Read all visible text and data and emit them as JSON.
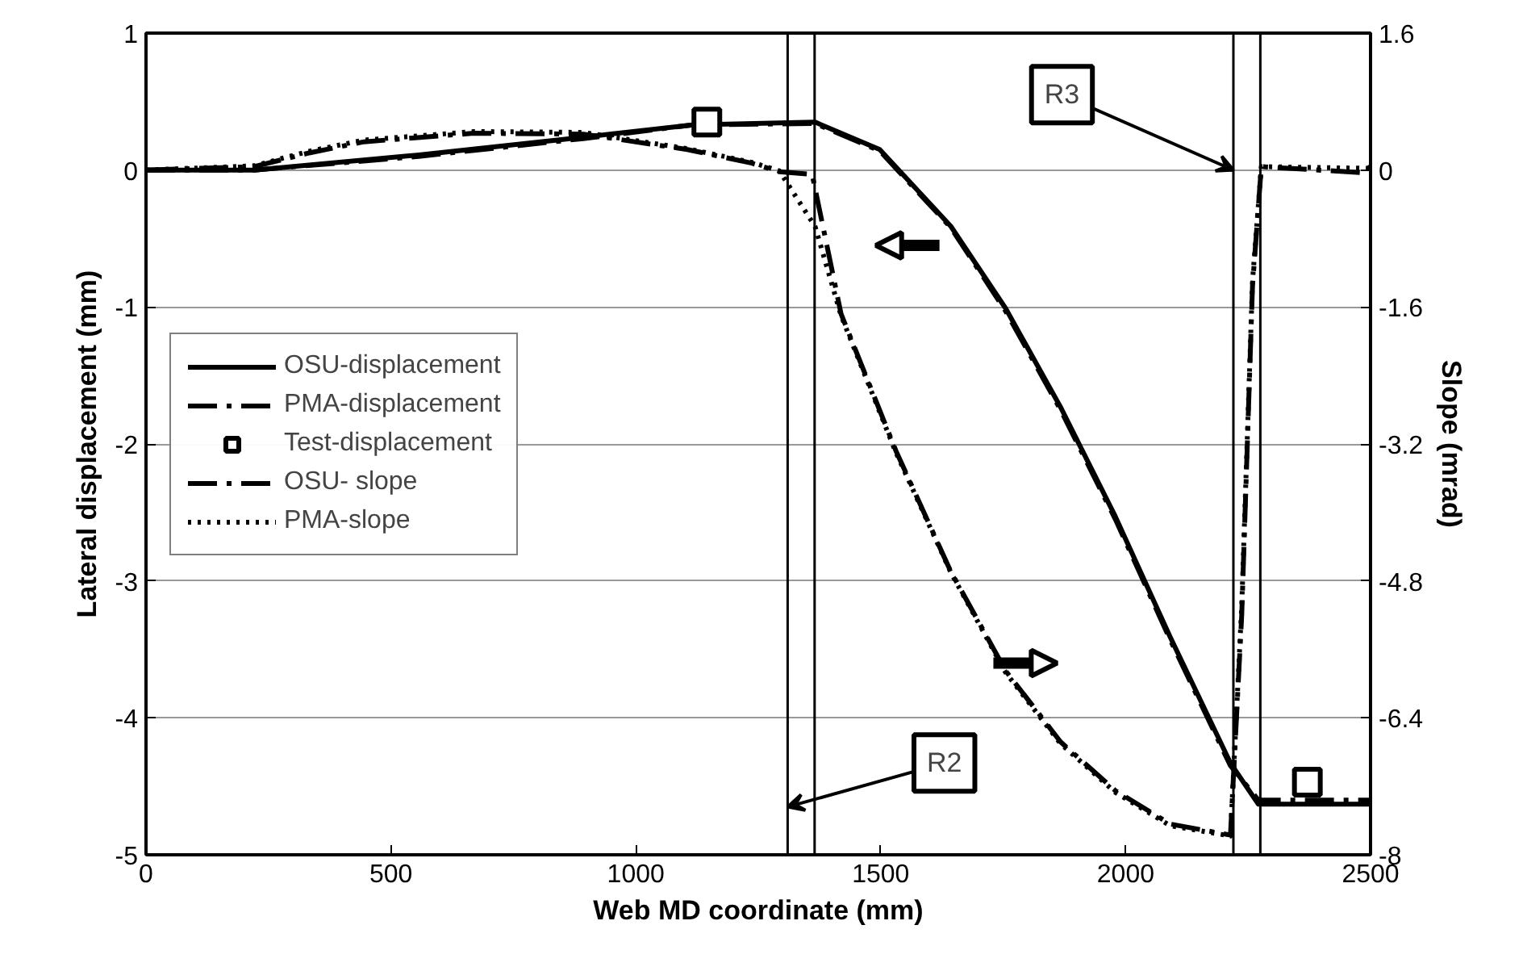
{
  "chart_data": {
    "type": "line",
    "xlabel": "Web MD coordinate (mm)",
    "ylabel": "Lateral displacement (mm)",
    "y2label": "Slope (mrad)",
    "xlim": [
      0,
      2500
    ],
    "xticks": [
      0,
      500,
      1000,
      1500,
      2000,
      2500
    ],
    "ylim": [
      -5,
      1
    ],
    "yticks": [
      -5,
      -4,
      -3,
      -2,
      -1,
      0,
      1
    ],
    "y2lim": [
      -8,
      1.6
    ],
    "y2ticks": [
      -8,
      -6.4,
      -4.8,
      -3.2,
      -1.6,
      0,
      1.6
    ],
    "grid": "y",
    "legend": "left",
    "series": [
      {
        "name": "OSU-displacement",
        "color": "#000000",
        "line_style": "solid",
        "marker": "none",
        "x": [
          0,
          221,
          557,
          893,
          1116,
          1366,
          1498,
          1643,
          1755,
          1867,
          1979,
          2091,
          2214,
          2271,
          2500
        ],
        "values": [
          0,
          0,
          0.11,
          0.24,
          0.33,
          0.35,
          0.15,
          -0.41,
          -1.01,
          -1.73,
          -2.53,
          -3.41,
          -4.33,
          -4.63,
          -4.63
        ]
      },
      {
        "name": "PMA-displacement",
        "color": "#000000",
        "line_style": "dashdot",
        "marker": "none",
        "x": [
          0,
          221,
          557,
          893,
          1116,
          1366,
          1498,
          1643,
          1755,
          1867,
          1979,
          2091,
          2214,
          2271,
          2500
        ],
        "values": [
          0,
          0,
          0.1,
          0.23,
          0.33,
          0.34,
          0.14,
          -0.42,
          -1.03,
          -1.75,
          -2.55,
          -3.43,
          -4.35,
          -4.6,
          -4.6
        ]
      },
      {
        "name": "Test-displacement",
        "color": "#000000",
        "type": "scatter",
        "marker": "square",
        "x": [
          1145,
          2371
        ],
        "values": [
          0.35,
          -4.47
        ]
      },
      {
        "name": "OSU- slope",
        "color": "#000000",
        "axis": "y2",
        "line_style": "dashdot",
        "marker": "none",
        "x": [
          0,
          221,
          333,
          445,
          669,
          893,
          1105,
          1237,
          1293,
          1360,
          1419,
          1531,
          1643,
          1755,
          1867,
          1979,
          2091,
          2214,
          2237,
          2259,
          2277,
          2480,
          2500
        ],
        "values": [
          0,
          0.04,
          0.2,
          0.33,
          0.43,
          0.42,
          0.24,
          0.08,
          -0.02,
          -0.05,
          -1.68,
          -3.28,
          -4.69,
          -5.85,
          -6.68,
          -7.25,
          -7.64,
          -7.77,
          -5.2,
          -1.36,
          0.04,
          -0.03,
          0.04
        ]
      },
      {
        "name": "PMA-slope",
        "color": "#000000",
        "axis": "y2",
        "line_style": "dotted",
        "marker": "none",
        "x": [
          0,
          221,
          333,
          445,
          669,
          893,
          1105,
          1237,
          1293,
          1366,
          1419,
          1531,
          1643,
          1755,
          1867,
          1979,
          2091,
          2214,
          2237,
          2259,
          2277,
          2500
        ],
        "values": [
          0,
          0.05,
          0.22,
          0.35,
          0.45,
          0.44,
          0.25,
          0.09,
          -0.01,
          -0.66,
          -1.7,
          -3.3,
          -4.7,
          -5.87,
          -6.7,
          -7.27,
          -7.66,
          -7.78,
          -5.1,
          -1.3,
          0.04,
          0.02
        ]
      }
    ],
    "ref_lines": [
      {
        "axis": "x",
        "value": 1310,
        "color": "#000000"
      },
      {
        "axis": "x",
        "value": 1365,
        "color": "#000000"
      },
      {
        "axis": "x",
        "value": 2220,
        "color": "#000000"
      },
      {
        "axis": "x",
        "value": 2275,
        "color": "#000000"
      }
    ],
    "annotations": [
      {
        "text": "R2",
        "x": 1310,
        "y": -4.65
      },
      {
        "text": "R3",
        "x": 2220,
        "y": 0
      }
    ]
  }
}
